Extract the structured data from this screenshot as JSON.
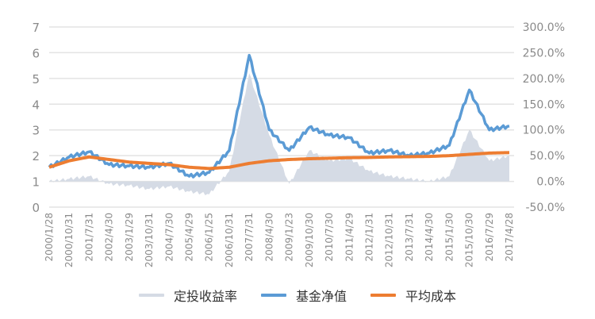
{
  "chart_data": {
    "type": "line",
    "title": "",
    "xlabel": "",
    "ylabel": "",
    "y_left": {
      "range": [
        0,
        7
      ],
      "ticks": [
        "0",
        "1",
        "2",
        "3",
        "4",
        "5",
        "6",
        "7"
      ]
    },
    "y_right": {
      "range": [
        -50,
        300
      ],
      "ticks": [
        "-50.0%",
        "0.0%",
        "50.0%",
        "100.0%",
        "150.0%",
        "200.0%",
        "250.0%",
        "300.0%"
      ]
    },
    "grid": true,
    "legend_position": "bottom",
    "categories": [
      "2000/1/28",
      "2000/10/31",
      "2001/7/31",
      "2002/4/30",
      "2003/1/29",
      "2003/10/31",
      "2004/7/30",
      "2005/4/29",
      "2006/1/25",
      "2006/10/31",
      "2007/7/31",
      "2008/4/30",
      "2009/1/23",
      "2009/10/30",
      "2010/7/30",
      "2011/4/29",
      "2012/1/31",
      "2012/10/31",
      "2013/7/31",
      "2014/4/30",
      "2015/1/30",
      "2015/10/30",
      "2016/7/29",
      "2017/4/28"
    ],
    "series": [
      {
        "name": "定投收益率",
        "axis": "right",
        "type": "area",
        "color": "#d5dbe5",
        "values": [
          0,
          5,
          10,
          -5,
          -8,
          -15,
          -10,
          -20,
          -25,
          20,
          210,
          90,
          -5,
          60,
          40,
          45,
          20,
          10,
          5,
          0,
          10,
          100,
          40,
          50
        ]
      },
      {
        "name": "基金净值",
        "axis": "left",
        "type": "line",
        "color": "#5b9bd5",
        "values": [
          1.55,
          1.95,
          2.15,
          1.65,
          1.6,
          1.55,
          1.7,
          1.2,
          1.35,
          2.2,
          5.9,
          3.0,
          2.2,
          3.1,
          2.8,
          2.7,
          2.1,
          2.2,
          2.0,
          2.1,
          2.4,
          4.55,
          3.0,
          3.15
        ]
      },
      {
        "name": "平均成本",
        "axis": "left",
        "type": "line",
        "color": "#ed7d31",
        "values": [
          1.55,
          1.8,
          1.95,
          1.85,
          1.75,
          1.7,
          1.65,
          1.55,
          1.5,
          1.55,
          1.7,
          1.8,
          1.85,
          1.88,
          1.9,
          1.92,
          1.93,
          1.95,
          1.96,
          1.97,
          2.0,
          2.05,
          2.1,
          2.12
        ]
      }
    ]
  },
  "legend": {
    "items": [
      {
        "label": "定投收益率",
        "color": "#d5dbe5"
      },
      {
        "label": "基金净值",
        "color": "#5b9bd5"
      },
      {
        "label": "平均成本",
        "color": "#ed7d31"
      }
    ]
  }
}
